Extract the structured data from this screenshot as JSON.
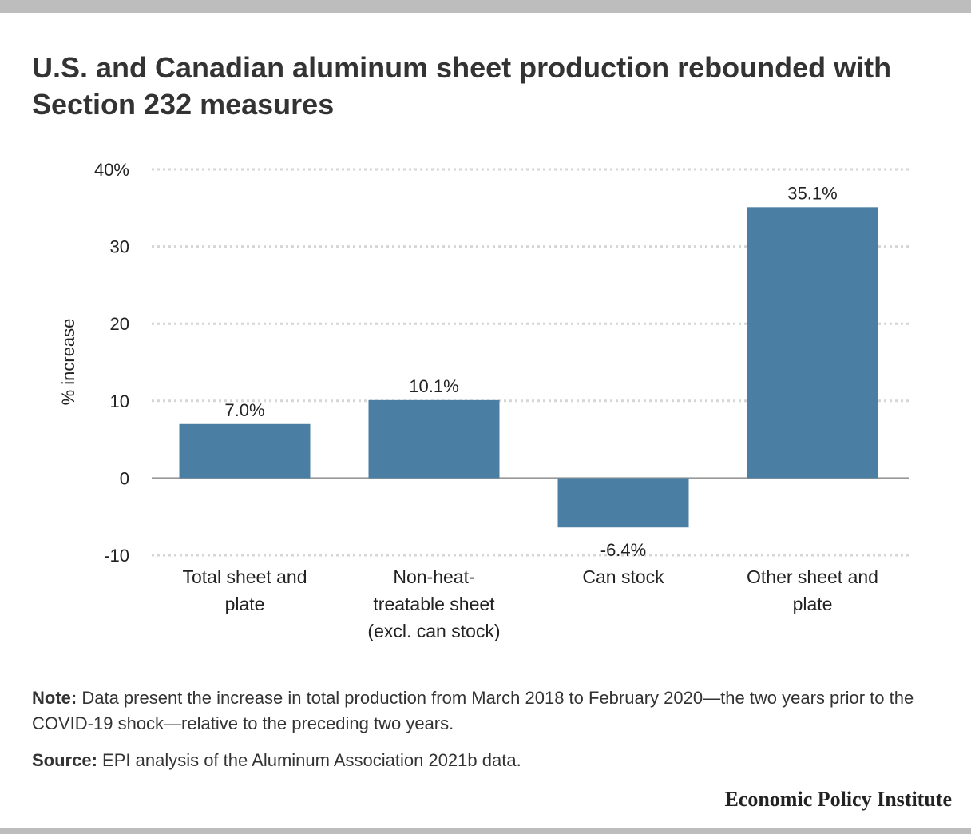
{
  "header": {
    "title": "U.S. and Canadian aluminum sheet production rebounded with Section 232 measures"
  },
  "chart_data": {
    "type": "bar",
    "categories": [
      [
        "Total sheet and",
        "plate"
      ],
      [
        "Non-heat-",
        "treatable sheet",
        "(excl. can stock)"
      ],
      [
        "Can stock"
      ],
      [
        "Other sheet and",
        "plate"
      ]
    ],
    "values": [
      7.0,
      10.1,
      -6.4,
      35.1
    ],
    "value_labels": [
      "7.0%",
      "10.1%",
      "-6.4%",
      "35.1%"
    ],
    "ylabel": "% increase",
    "ylim": [
      -10,
      40
    ],
    "yticks": [
      -10,
      0,
      10,
      20,
      30,
      40
    ],
    "ytick_labels": [
      "-10",
      "0",
      "10",
      "20",
      "30",
      "40%"
    ],
    "grid": true,
    "bar_color": "#4a7fa3"
  },
  "footer": {
    "note_label": "Note:",
    "note_text": " Data present the increase in total production from March 2018 to February 2020—the two years prior to the COVID-19 shock—relative to the preceding two years.",
    "source_label": "Source:",
    "source_text": " EPI analysis of the Aluminum Association 2021b data.",
    "branding": "Economic Policy Institute"
  }
}
